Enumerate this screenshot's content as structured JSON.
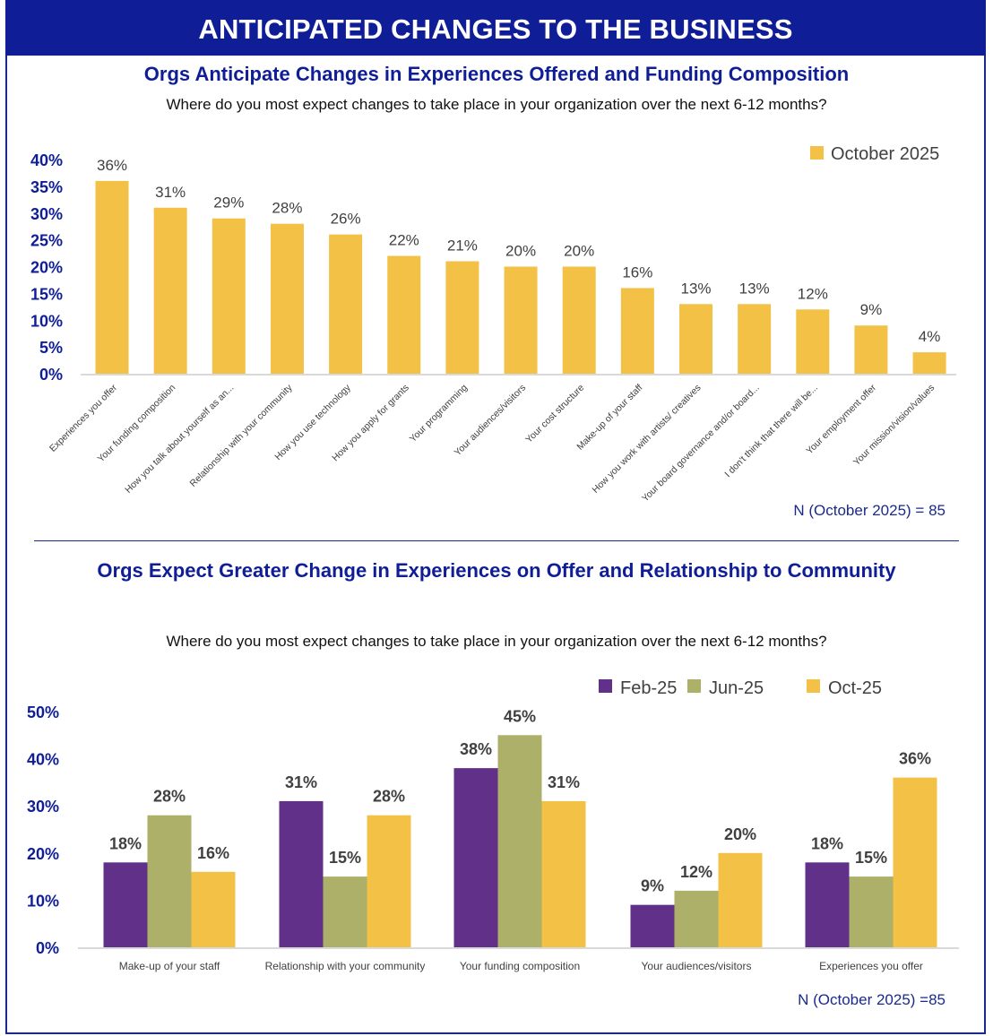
{
  "page": {
    "banner_title": "ANTICIPATED CHANGES TO THE BUSINESS"
  },
  "colors": {
    "banner": "#0f1e96",
    "axis_text": "#0f1e96",
    "oct": "#f2c146",
    "feb": "#613089",
    "jun": "#adb068"
  },
  "chart_data": [
    {
      "type": "bar",
      "title": "Orgs Anticipate Changes in Experiences Offered and Funding Composition",
      "subtitle": "Where do you most expect changes to take place in your organization over the next 6-12 months?",
      "xlabel": "",
      "ylabel": "",
      "ylim": [
        0,
        40
      ],
      "yticks": [
        "0%",
        "5%",
        "10%",
        "15%",
        "20%",
        "25%",
        "30%",
        "35%",
        "40%"
      ],
      "grid": false,
      "legend_position": "top-right",
      "series": [
        {
          "name": "October 2025",
          "color": "#f2c146"
        }
      ],
      "categories": [
        "Experiences you offer",
        "Your funding composition",
        "How you talk about yourself as an...",
        "Relationship with your community",
        "How you use technology",
        "How you apply for grants",
        "Your programming",
        "Your audiences/visitors",
        "Your cost structure",
        "Make-up of your staff",
        "How you work with artists/ creatives",
        "Your board governance and/or board...",
        "I don't think that there will be...",
        "Your employment offer",
        "Your mission/vision/values"
      ],
      "values": [
        36,
        31,
        29,
        28,
        26,
        22,
        21,
        20,
        20,
        16,
        13,
        13,
        12,
        9,
        4
      ],
      "data_labels": [
        "36%",
        "31%",
        "29%",
        "28%",
        "26%",
        "22%",
        "21%",
        "20%",
        "20%",
        "16%",
        "13%",
        "13%",
        "12%",
        "9%",
        "4%"
      ],
      "annotation": "N (October 2025) = 85"
    },
    {
      "type": "bar",
      "title": "Orgs Expect Greater Change in Experiences on Offer and Relationship to Community",
      "subtitle": "Where do you most expect changes to take place in your organization over the next 6-12 months?",
      "xlabel": "",
      "ylabel": "",
      "ylim": [
        0,
        50
      ],
      "yticks": [
        "0%",
        "10%",
        "20%",
        "30%",
        "40%",
        "50%"
      ],
      "grid": false,
      "legend_position": "top-right",
      "categories": [
        "Make-up of your staff",
        "Relationship with your community",
        "Your funding composition",
        "Your audiences/visitors",
        "Experiences you offer"
      ],
      "series": [
        {
          "name": "Feb-25",
          "color": "#613089",
          "values": [
            18,
            31,
            38,
            9,
            18
          ],
          "data_labels": [
            "18%",
            "31%",
            "38%",
            "9%",
            "18%"
          ]
        },
        {
          "name": "Jun-25",
          "color": "#adb068",
          "values": [
            28,
            15,
            45,
            12,
            15
          ],
          "data_labels": [
            "28%",
            "15%",
            "45%",
            "12%",
            "15%"
          ]
        },
        {
          "name": "Oct-25",
          "color": "#f2c146",
          "values": [
            16,
            28,
            31,
            20,
            36
          ],
          "data_labels": [
            "16%",
            "28%",
            "31%",
            "20%",
            "36%"
          ]
        }
      ],
      "annotation": "N (October 2025) =85"
    }
  ]
}
